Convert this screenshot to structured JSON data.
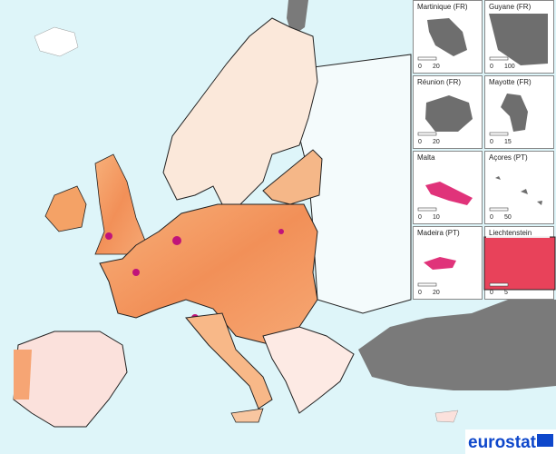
{
  "insets": [
    {
      "title": "Martinique (FR)",
      "scale": [
        0,
        20
      ]
    },
    {
      "title": "Guyane (FR)",
      "scale": [
        0,
        100
      ]
    },
    {
      "title": "Réunion (FR)",
      "scale": [
        0,
        20
      ]
    },
    {
      "title": "Mayotte (FR)",
      "scale": [
        0,
        15
      ]
    },
    {
      "title": "Malta",
      "scale": [
        0,
        10
      ]
    },
    {
      "title": "Açores (PT)",
      "scale": [
        0,
        50
      ]
    },
    {
      "title": "Madeira (PT)",
      "scale": [
        0,
        20
      ]
    },
    {
      "title": "Liechtenstein",
      "scale": [
        0,
        5
      ]
    }
  ],
  "logo": "eurostat"
}
